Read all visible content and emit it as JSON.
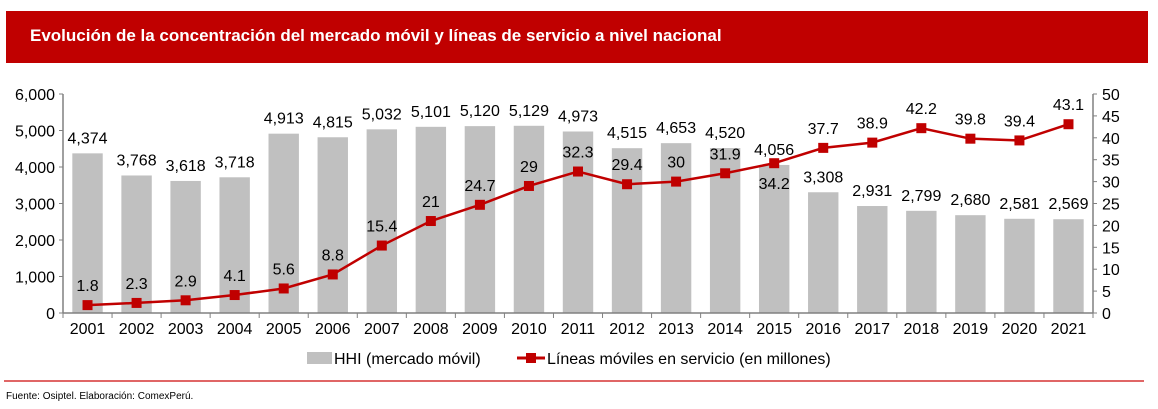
{
  "header": {
    "title": "Evolución de la concentración del mercado móvil y líneas de servicio a nivel nacional"
  },
  "footer": {
    "source": "Fuente: Osiptel. Elaboración: ComexPerú."
  },
  "colors": {
    "title_bg": "#c00000",
    "bar": "#c0c0c0",
    "line": "#c00000",
    "axis": "#808080"
  },
  "chart_data": {
    "type": "bar",
    "title": "Evolución de la concentración del mercado móvil y líneas de servicio a nivel nacional",
    "categories": [
      "2001",
      "2002",
      "2003",
      "2004",
      "2005",
      "2006",
      "2007",
      "2008",
      "2009",
      "2010",
      "2011",
      "2012",
      "2013",
      "2014",
      "2015",
      "2016",
      "2017",
      "2018",
      "2019",
      "2020",
      "2021"
    ],
    "series": [
      {
        "name": "HHI (mercado móvil)",
        "type": "bar",
        "axis": "left",
        "values": [
          4374,
          3768,
          3618,
          3718,
          4913,
          4815,
          5032,
          5101,
          5120,
          5129,
          4973,
          4515,
          4653,
          4520,
          4056,
          3308,
          2931,
          2799,
          2680,
          2581,
          2569
        ],
        "labels": [
          "4,374",
          "3,768",
          "3,618",
          "3,718",
          "4,913",
          "4,815",
          "5,032",
          "5,101",
          "5,120",
          "5,129",
          "4,973",
          "4,515",
          "4,653",
          "4,520",
          "4,056",
          "3,308",
          "2,931",
          "2,799",
          "2,680",
          "2,581",
          "2,569"
        ]
      },
      {
        "name": "Líneas móviles en servicio (en millones)",
        "type": "line",
        "axis": "right",
        "values": [
          1.8,
          2.3,
          2.9,
          4.1,
          5.6,
          8.8,
          15.4,
          21,
          24.7,
          29,
          32.3,
          29.4,
          30,
          31.9,
          34.2,
          37.7,
          38.9,
          42.2,
          39.8,
          39.4,
          43.1
        ],
        "labels": [
          "1.8",
          "2.3",
          "2.9",
          "4.1",
          "5.6",
          "8.8",
          "15.4",
          "21",
          "24.7",
          "29",
          "32.3",
          "29.4",
          "30",
          "31.9",
          "34.2",
          "37.7",
          "38.9",
          "42.2",
          "39.8",
          "39.4",
          "43.1"
        ]
      }
    ],
    "y_left": {
      "min": 0,
      "max": 6000,
      "ticks": [
        "0",
        "1,000",
        "2,000",
        "3,000",
        "4,000",
        "5,000",
        "6,000"
      ]
    },
    "y_right": {
      "min": 0,
      "max": 50,
      "ticks": [
        "0",
        "5",
        "10",
        "15",
        "20",
        "25",
        "30",
        "35",
        "40",
        "45",
        "50"
      ]
    },
    "xlabel": "",
    "ylabel": "",
    "grid": false,
    "legend_position": "bottom-center"
  }
}
